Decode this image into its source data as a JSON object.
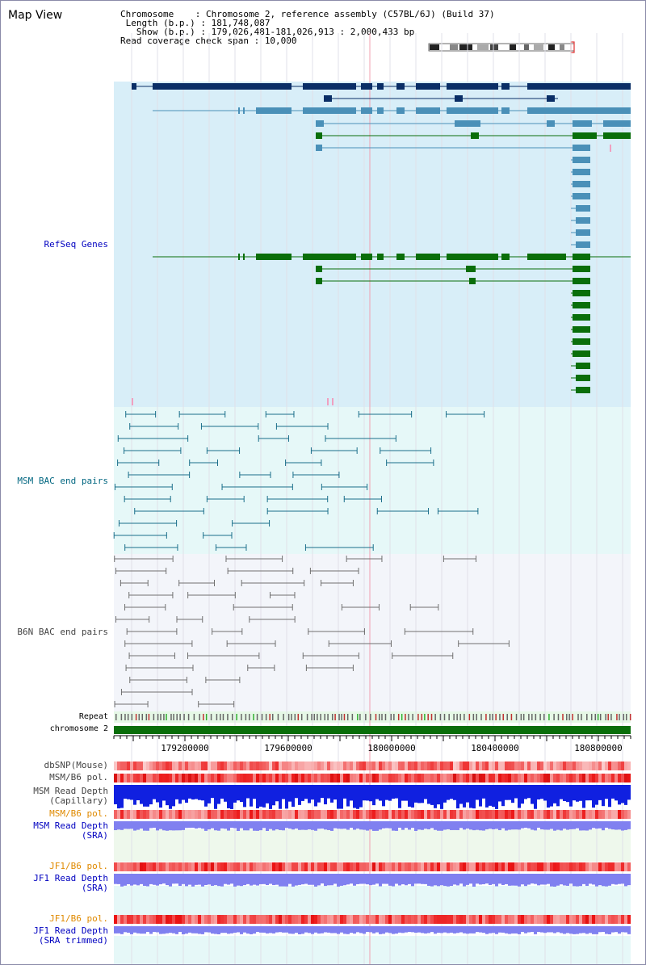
{
  "title": "Map View",
  "header": {
    "chromosome_key": "Chromosome    :",
    "chromosome_val": "Chromosome 2, reference assembly (C57BL/6J) (Build 37)",
    "length_key": " Length (b.p.) :",
    "length_val": "181,748,087",
    "show_key": "   Show (b.p.) :",
    "show_val": "179,026,481-181,026,913 : 2,000,433 bp",
    "span_key": "Read coverage check span :",
    "span_val": "10,000"
  },
  "tracks": {
    "refseq": "RefSeq Genes",
    "msm_bac": "MSM BAC end pairs",
    "b6n_bac": "B6N BAC end pairs",
    "repeat": "Repeat",
    "chromosome": "chromosome 2",
    "dbsnp": "dbSNP(Mouse)",
    "msm_pol1": "MSM/B6 pol.",
    "msm_depth_cap_1": "MSM Read Depth",
    "msm_depth_cap_2": "(Capillary)",
    "msm_pol2": "MSM/B6 pol.",
    "msm_depth_sra_1": "MSM Read Depth",
    "msm_depth_sra_2": "(SRA)",
    "jf1_pol1": "JF1/B6 pol.",
    "jf1_depth_1": "JF1 Read Depth",
    "jf1_depth_2": "(SRA)",
    "jf1_pol2": "JF1/B6 pol.",
    "jf1_trim_1": "JF1 Read Depth",
    "jf1_trim_2": "(SRA trimmed)"
  },
  "axis": {
    "ticks": [
      "179200000",
      "179600000",
      "180000000",
      "180400000",
      "180800000"
    ]
  },
  "colors": {
    "refseq_bg": "#d8eef8",
    "bac_bg": "#e6f8f8",
    "b6n_bg": "#f3f5fa",
    "gene_dark": "#0a2e66",
    "gene_mid": "#4a90b8",
    "gene_green": "#0a6e0a",
    "msm_pair": "#1a6e8a",
    "b6n_pair": "#707070",
    "chrom": "#0a6e0a",
    "snp": "#e04040",
    "depth_cap": "#1020e0",
    "depth_sra": "#8080f0",
    "label_blue": "#0000c0",
    "label_teal": "#006680",
    "label_orange": "#e08a00",
    "label_gray": "#444444"
  }
}
